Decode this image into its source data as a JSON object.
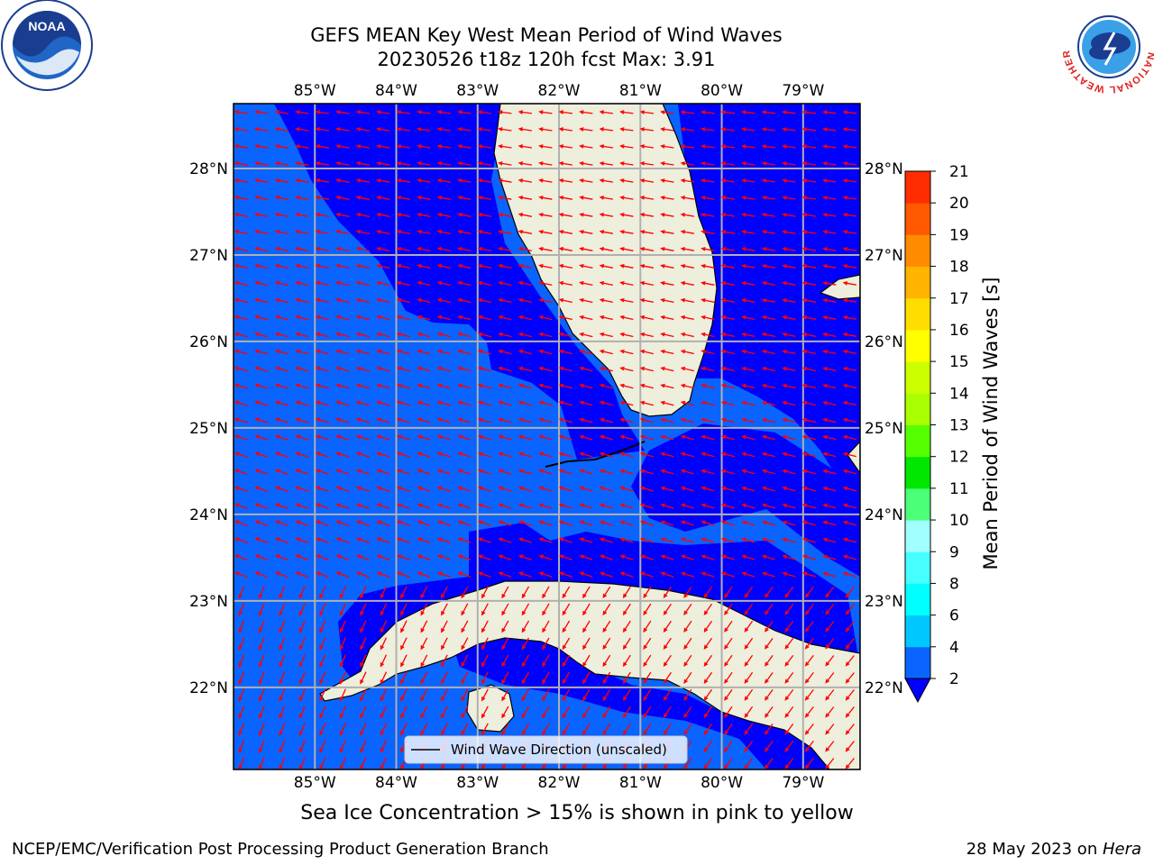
{
  "title_line1": "GEFS MEAN Key West Mean Period of Wind Waves",
  "title_line2": "20230526 t18z 120h fcst   Max: 3.91",
  "logos": {
    "left_text": "NOAA",
    "right_ring_text": "NATIONAL WEATHER SERVICE"
  },
  "map": {
    "lon_ticks": [
      "85°W",
      "84°W",
      "83°W",
      "82°W",
      "81°W",
      "80°W",
      "79°W"
    ],
    "lat_ticks": [
      "28°N",
      "27°N",
      "26°N",
      "25°N",
      "24°N",
      "23°N",
      "22°N"
    ],
    "lon_range": [
      -86,
      -78.3
    ],
    "lat_range": [
      21.05,
      28.75
    ],
    "legend_label": "Wind Wave Direction (unscaled)"
  },
  "colorbar": {
    "label": "Mean Period of Wind Waves [s]",
    "ticks": [
      "2",
      "4",
      "6",
      "8",
      "9",
      "10",
      "11",
      "12",
      "13",
      "14",
      "15",
      "16",
      "17",
      "18",
      "19",
      "20",
      "21"
    ],
    "colors": [
      "#0a64ff",
      "#00c8ff",
      "#00ffff",
      "#46ffff",
      "#a0ffff",
      "#4bff78",
      "#00e600",
      "#55ff00",
      "#aaff00",
      "#ccff00",
      "#ffff00",
      "#ffdd00",
      "#ffb400",
      "#ff8c00",
      "#ff5a00",
      "#ff2d00",
      "#ff0000"
    ],
    "under_color": "#0000ff"
  },
  "field_colors": {
    "low": "#0000ff",
    "mid": "#0a64ff",
    "land": "#eeeedc",
    "arrow": "#ff0000"
  },
  "bottom_note": "Sea Ice Concentration > 15% is shown in pink to yellow",
  "footer_left": "NCEP/EMC/Verification Post Processing Product Generation Branch",
  "footer_right_date": "28 May 2023 on ",
  "footer_right_host": "Hera"
}
